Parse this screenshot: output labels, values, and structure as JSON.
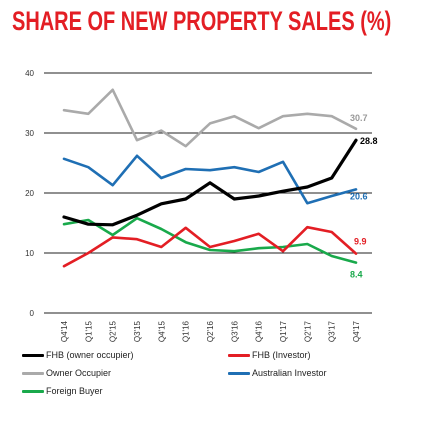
{
  "chart_data": {
    "type": "line",
    "title": "SHARE OF NEW PROPERTY SALES (%)",
    "xlabel": "",
    "ylabel": "",
    "ylim": [
      0,
      40
    ],
    "yticks": [
      "0",
      "10",
      "20",
      "30",
      "40"
    ],
    "grid": true,
    "legend_position": "bottom",
    "categories": [
      "Q4'14",
      "Q1'15",
      "Q2'15",
      "Q3'15",
      "Q4'15",
      "Q1'16",
      "Q2'16",
      "Q3'16",
      "Q4'16",
      "Q1'17",
      "Q2'17",
      "Q3'17",
      "Q4'17"
    ],
    "series": [
      {
        "name": "FHB (owner occupier)",
        "color": "#000000",
        "values": [
          16.0,
          14.8,
          14.7,
          16.3,
          18.2,
          19.0,
          21.7,
          19.0,
          19.5,
          20.3,
          21.0,
          22.5,
          28.8
        ],
        "end_label": "28.8"
      },
      {
        "name": "FHB (Investor)",
        "color": "#e31e24",
        "values": [
          7.8,
          10.0,
          12.6,
          12.3,
          11.0,
          14.2,
          11.0,
          12.0,
          13.2,
          10.3,
          14.3,
          13.5,
          9.9
        ],
        "end_label": "9.9"
      },
      {
        "name": "Owner Occupier",
        "color": "#aaaaaa",
        "values": [
          33.8,
          33.2,
          37.2,
          28.8,
          30.4,
          27.8,
          31.6,
          32.8,
          30.8,
          32.8,
          33.2,
          32.8,
          30.7
        ],
        "end_label": "30.7"
      },
      {
        "name": "Australian Investor",
        "color": "#1f6fb4",
        "values": [
          25.7,
          24.3,
          21.3,
          26.2,
          22.5,
          24.0,
          23.8,
          24.3,
          23.5,
          25.2,
          18.3,
          19.5,
          20.6
        ],
        "end_label": "20.6"
      },
      {
        "name": "Foreign Buyer",
        "color": "#19a94b",
        "values": [
          14.8,
          15.5,
          13.0,
          15.8,
          14.0,
          11.8,
          10.5,
          10.3,
          10.8,
          11.0,
          11.5,
          9.5,
          8.4
        ],
        "end_label": "8.4"
      }
    ]
  }
}
